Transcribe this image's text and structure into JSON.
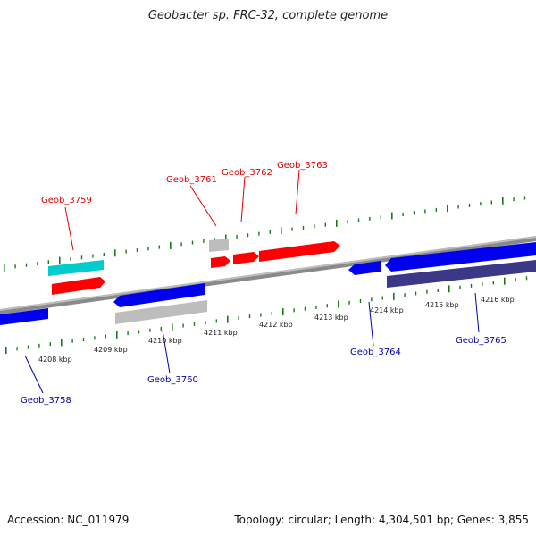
{
  "title": "Geobacter sp. FRC-32, complete genome",
  "footer": {
    "accession": "Accession: NC_011979",
    "topology": "Topology: circular; Length: 4,304,501 bp; Genes: 3,855"
  },
  "colors": {
    "backbone": "#8a8a8a",
    "forward_gene": "#ff0000",
    "reverse_gene": "#0000ee",
    "gray_gene": "#bdbdbd",
    "cyan_gene": "#00cccc",
    "dark_gene": "#3b3888",
    "tick": "#1a7a1a",
    "label_forward": "#dd0000",
    "label_reverse": "#0000aa",
    "kbp_label": "#222222"
  },
  "kbp_labels": [
    "4208 kbp",
    "4209 kbp",
    "4210 kbp",
    "4211 kbp",
    "4212 kbp",
    "4213 kbp",
    "4214 kbp",
    "4215 kbp",
    "4216 kbp"
  ],
  "gene_labels": {
    "forward": [
      "Geob_3759",
      "Geob_3761",
      "Geob_3762",
      "Geob_3763"
    ],
    "reverse": [
      "Geob_3758",
      "Geob_3760",
      "Geob_3764",
      "Geob_3765"
    ]
  }
}
